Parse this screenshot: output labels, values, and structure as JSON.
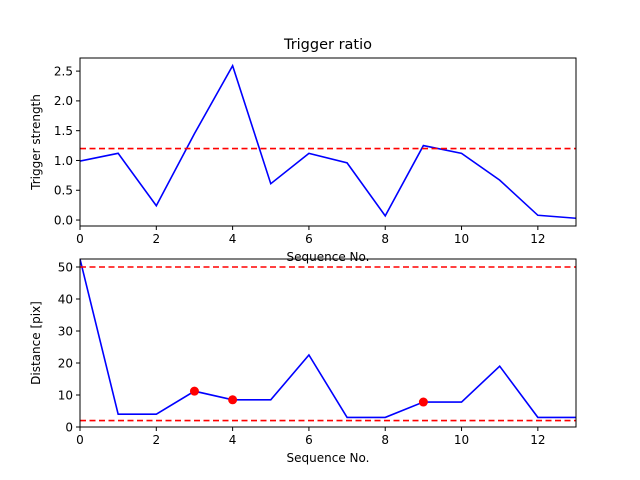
{
  "chart_data": [
    {
      "type": "line",
      "title": "Trigger ratio",
      "xlabel": "Sequence No.",
      "ylabel": "Trigger strength",
      "xlim": [
        0,
        13
      ],
      "ylim": [
        -0.1,
        2.72
      ],
      "xticks": [
        0,
        2,
        4,
        6,
        8,
        10,
        12
      ],
      "yticks": [
        0.0,
        0.5,
        1.0,
        1.5,
        2.0,
        2.5
      ],
      "ytick_labels": [
        "0.0",
        "0.5",
        "1.0",
        "1.5",
        "2.0",
        "2.5"
      ],
      "grid": false,
      "series": [
        {
          "color": "#0000ff",
          "x": [
            0,
            1,
            2,
            3,
            4,
            5,
            6,
            7,
            8,
            9,
            10,
            11,
            12,
            13
          ],
          "y": [
            0.99,
            1.12,
            0.24,
            1.45,
            2.59,
            0.61,
            1.12,
            0.96,
            0.07,
            1.25,
            1.12,
            0.67,
            0.08,
            0.03
          ]
        }
      ],
      "hlines": [
        {
          "y": 1.2,
          "color": "#ff0000",
          "style": "dashed"
        }
      ]
    },
    {
      "type": "line",
      "title": "",
      "xlabel": "Sequence No.",
      "ylabel": "Distance [pix]",
      "xlim": [
        0,
        13
      ],
      "ylim": [
        0,
        52.5
      ],
      "xticks": [
        0,
        2,
        4,
        6,
        8,
        10,
        12
      ],
      "yticks": [
        0,
        10,
        20,
        30,
        40,
        50
      ],
      "ytick_labels": [
        "0",
        "10",
        "20",
        "30",
        "40",
        "50"
      ],
      "grid": false,
      "series": [
        {
          "color": "#0000ff",
          "x": [
            0,
            1,
            2,
            3,
            4,
            5,
            6,
            7,
            8,
            9,
            10,
            11,
            12,
            13
          ],
          "y": [
            52.5,
            4,
            4,
            11.2,
            8.5,
            8.5,
            22.5,
            3,
            3,
            7.8,
            7.8,
            19,
            3,
            3
          ]
        },
        {
          "color": "#ff0000",
          "marker": "circle",
          "x": [
            3,
            4,
            9
          ],
          "y": [
            11.2,
            8.5,
            7.8
          ]
        }
      ],
      "hlines": [
        {
          "y": 50,
          "color": "#ff0000",
          "style": "dashed"
        },
        {
          "y": 2,
          "color": "#ff0000",
          "style": "dashed"
        }
      ]
    }
  ]
}
